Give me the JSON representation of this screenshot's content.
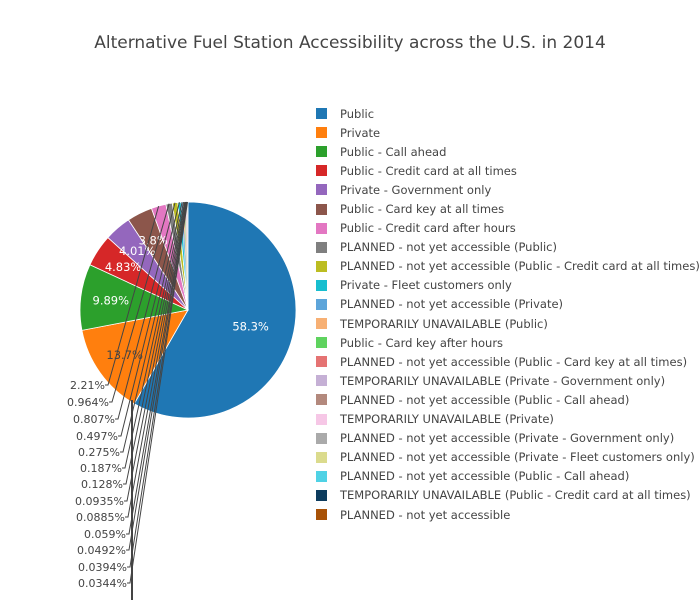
{
  "chart_data": {
    "type": "pie",
    "title": "Alternative Fuel Station Accessibility across the U.S. in 2014",
    "legend_position": "right",
    "slices": [
      {
        "label": "Public",
        "value": 58.3,
        "text": "58.3%",
        "color": "#1f77b4"
      },
      {
        "label": "Private",
        "value": 13.7,
        "text": "13.7%",
        "color": "#ff7f0e"
      },
      {
        "label": "Public - Call ahead",
        "value": 9.89,
        "text": "9.89%",
        "color": "#2ca02c"
      },
      {
        "label": "Public - Credit card at all times",
        "value": 4.83,
        "text": "4.83%",
        "color": "#d62728"
      },
      {
        "label": "Private - Government only",
        "value": 4.01,
        "text": "4.01%",
        "color": "#9467bd"
      },
      {
        "label": "Public - Card key at all times",
        "value": 3.8,
        "text": "3.8%",
        "color": "#8c564b"
      },
      {
        "label": "Public - Credit card after hours",
        "value": 2.21,
        "text": "2.21%",
        "color": "#e377c2"
      },
      {
        "label": "PLANNED - not yet accessible (Public)",
        "value": 0.964,
        "text": "0.964%",
        "color": "#7f7f7f"
      },
      {
        "label": "PLANNED - not yet accessible (Public - Credit card at all times)",
        "value": 0.807,
        "text": "0.807%",
        "color": "#bcbd22"
      },
      {
        "label": "Private - Fleet customers only",
        "value": 0.497,
        "text": "0.497%",
        "color": "#17becf"
      },
      {
        "label": "PLANNED - not yet accessible (Private)",
        "value": 0.275,
        "text": "0.275%",
        "color": "#5da5da"
      },
      {
        "label": "TEMPORARILY UNAVAILABLE (Public)",
        "value": 0.187,
        "text": "0.187%",
        "color": "#f7b074"
      },
      {
        "label": "Public - Card key after hours",
        "value": 0.128,
        "text": "0.128%",
        "color": "#5fd35f"
      },
      {
        "label": "PLANNED - not yet accessible (Public - Card key at all times)",
        "value": 0.0935,
        "text": "0.0935%",
        "color": "#e57373"
      },
      {
        "label": "TEMPORARILY UNAVAILABLE (Private - Government only)",
        "value": 0.0885,
        "text": "0.0885%",
        "color": "#c5b0d5"
      },
      {
        "label": "PLANNED - not yet accessible (Public - Call ahead)",
        "value": 0.059,
        "text": "0.059%",
        "color": "#b3897d"
      },
      {
        "label": "TEMPORARILY UNAVAILABLE (Private)",
        "value": 0.0492,
        "text": "0.0492%",
        "color": "#f6c7e6"
      },
      {
        "label": "PLANNED - not yet accessible (Private - Government only)",
        "value": 0.0394,
        "text": "0.0394%",
        "color": "#aaaaaa"
      },
      {
        "label": "PLANNED - not yet accessible (Private - Fleet customers only)",
        "value": 0.0344,
        "text": "0.0344%",
        "color": "#dbdb8d"
      },
      {
        "label": "PLANNED - not yet accessible (Public - Call ahead)",
        "value": 0.03,
        "text": "",
        "color": "#4fd2e5"
      },
      {
        "label": "TEMPORARILY UNAVAILABLE (Public - Credit card at all times)",
        "value": 0.02,
        "text": "",
        "color": "#0d3c5e"
      },
      {
        "label": "PLANNED - not yet accessible",
        "value": 0.01,
        "text": "",
        "color": "#a85207"
      }
    ]
  }
}
